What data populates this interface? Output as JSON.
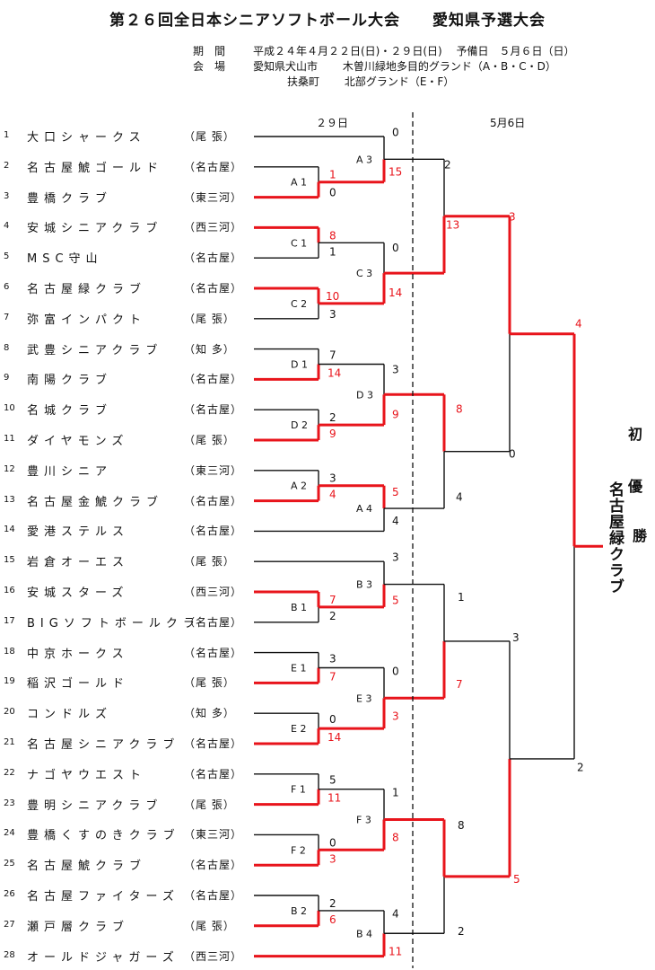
{
  "title": "第２６回全日本シニアソフトボール大会　　愛知県予選大会",
  "info": {
    "period_label": "期　間",
    "period_value": "平成２４年４月２２日(日)・２９日(日)　 予備日　５月６日（日）",
    "venue_label": "会　場",
    "venue_line1": "愛知県犬山市　　 木曽川緑地多目的グランド（A・B・C・D）",
    "venue_line2": "扶桑町　　 北部グランド（E・F）"
  },
  "day_labels": {
    "round_29": "２９日",
    "round_5_6": "5月6日"
  },
  "teams": [
    {
      "no": "1",
      "name": "大口シャークス",
      "region": "（尾 張）"
    },
    {
      "no": "2",
      "name": "名古屋鯱ゴールド",
      "region": "（名古屋）"
    },
    {
      "no": "3",
      "name": "豊橋クラブ",
      "region": "（東三河）"
    },
    {
      "no": "4",
      "name": "安城シニアクラブ",
      "region": "（西三河）"
    },
    {
      "no": "5",
      "name": "MSC守山",
      "region": "（名古屋）"
    },
    {
      "no": "6",
      "name": "名古屋緑クラブ",
      "region": "（名古屋）"
    },
    {
      "no": "7",
      "name": "弥富インパクト",
      "region": "（尾 張）"
    },
    {
      "no": "8",
      "name": "武豊シニアクラブ",
      "region": "（知 多）"
    },
    {
      "no": "9",
      "name": "南陽クラブ",
      "region": "（名古屋）"
    },
    {
      "no": "10",
      "name": "名城クラブ",
      "region": "（名古屋）"
    },
    {
      "no": "11",
      "name": "ダイヤモンズ",
      "region": "（尾 張）"
    },
    {
      "no": "12",
      "name": "豊川シニア",
      "region": "（東三河）"
    },
    {
      "no": "13",
      "name": "名古屋金鯱クラブ",
      "region": "（名古屋）"
    },
    {
      "no": "14",
      "name": "愛港ステルス",
      "region": "（名古屋）"
    },
    {
      "no": "15",
      "name": "岩倉オーエス",
      "region": "（尾 張）"
    },
    {
      "no": "16",
      "name": "安城スターズ",
      "region": "（西三河）"
    },
    {
      "no": "17",
      "name": "BIGソフトボールクラ",
      "region": "（名古屋）"
    },
    {
      "no": "18",
      "name": "中京ホークス",
      "region": "（名古屋）"
    },
    {
      "no": "19",
      "name": "稲沢ゴールド",
      "region": "（尾 張）"
    },
    {
      "no": "20",
      "name": "コンドルズ",
      "region": "（知 多）"
    },
    {
      "no": "21",
      "name": "名古屋シニアクラブ",
      "region": "（名古屋）"
    },
    {
      "no": "22",
      "name": "ナゴヤウエスト",
      "region": "（名古屋）"
    },
    {
      "no": "23",
      "name": "豊明シニアクラブ",
      "region": "（尾 張）"
    },
    {
      "no": "24",
      "name": "豊橋くすのきクラブ",
      "region": "（東三河）"
    },
    {
      "no": "25",
      "name": "名古屋鯱クラブ",
      "region": "（名古屋）"
    },
    {
      "no": "26",
      "name": "名古屋ファイターズ",
      "region": "（名古屋）"
    },
    {
      "no": "27",
      "name": "瀬戸層クラブ",
      "region": "（尾 張）"
    },
    {
      "no": "28",
      "name": "オールドジャガーズ",
      "region": "（西三河）"
    }
  ],
  "match_labels": [
    "A 1",
    "C 1",
    "C 2",
    "D 1",
    "D 2",
    "A 2",
    "B 1",
    "E 1",
    "E 2",
    "F 1",
    "F 2",
    "B 2",
    "A 3",
    "C 3",
    "D 3",
    "A 4",
    "B 3",
    "E 3",
    "F 3",
    "B 4"
  ],
  "scores": [
    {
      "text": "1",
      "win": true
    },
    {
      "text": "0",
      "win": false
    },
    {
      "text": "8",
      "win": true
    },
    {
      "text": "1",
      "win": false
    },
    {
      "text": "10",
      "win": true
    },
    {
      "text": "3",
      "win": false
    },
    {
      "text": "7",
      "win": false
    },
    {
      "text": "14",
      "win": true
    },
    {
      "text": "2",
      "win": false
    },
    {
      "text": "9",
      "win": true
    },
    {
      "text": "3",
      "win": false
    },
    {
      "text": "4",
      "win": true
    },
    {
      "text": "7",
      "win": true
    },
    {
      "text": "2",
      "win": false
    },
    {
      "text": "3",
      "win": false
    },
    {
      "text": "7",
      "win": true
    },
    {
      "text": "0",
      "win": false
    },
    {
      "text": "14",
      "win": true
    },
    {
      "text": "5",
      "win": false
    },
    {
      "text": "11",
      "win": true
    },
    {
      "text": "0",
      "win": false
    },
    {
      "text": "3",
      "win": true
    },
    {
      "text": "2",
      "win": false
    },
    {
      "text": "6",
      "win": true
    },
    {
      "text": "0",
      "win": false
    },
    {
      "text": "15",
      "win": true
    },
    {
      "text": "0",
      "win": false
    },
    {
      "text": "14",
      "win": true
    },
    {
      "text": "3",
      "win": false
    },
    {
      "text": "9",
      "win": true
    },
    {
      "text": "5",
      "win": true
    },
    {
      "text": "4",
      "win": false
    },
    {
      "text": "3",
      "win": false
    },
    {
      "text": "5",
      "win": true
    },
    {
      "text": "0",
      "win": false
    },
    {
      "text": "3",
      "win": true
    },
    {
      "text": "1",
      "win": false
    },
    {
      "text": "8",
      "win": true
    },
    {
      "text": "4",
      "win": false
    },
    {
      "text": "11",
      "win": true
    },
    {
      "text": "2",
      "win": false
    },
    {
      "text": "13",
      "win": true
    },
    {
      "text": "8",
      "win": true
    },
    {
      "text": "4",
      "win": false
    },
    {
      "text": "1",
      "win": false
    },
    {
      "text": "7",
      "win": true
    },
    {
      "text": "8",
      "win": false
    },
    {
      "text": "2",
      "win": false
    },
    {
      "text": "3",
      "win": true
    },
    {
      "text": "0",
      "win": false
    },
    {
      "text": "3",
      "win": false
    },
    {
      "text": "5",
      "win": true
    },
    {
      "text": "4",
      "win": true
    },
    {
      "text": "2",
      "win": false
    }
  ],
  "champion": {
    "label_first": "初",
    "label_middle": "優",
    "label_last": "勝",
    "team": "名古屋緑クラブ"
  },
  "colors": {
    "win_line": "#e8141b",
    "line": "#111111",
    "score_win": "#e8141b"
  }
}
